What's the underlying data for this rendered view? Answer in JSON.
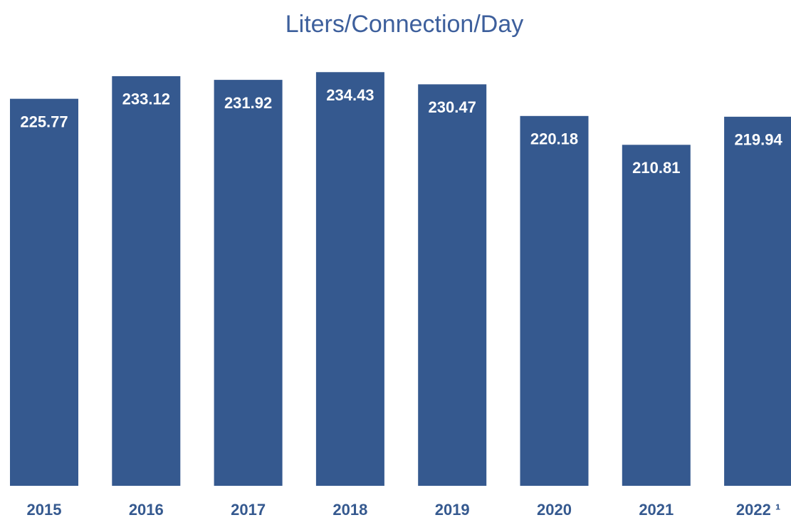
{
  "chart_data": {
    "type": "bar",
    "title": "Liters/Connection/Day",
    "categories": [
      "2015",
      "2016",
      "2017",
      "2018",
      "2019",
      "2020",
      "2021",
      "2022 ¹"
    ],
    "values": [
      225.77,
      233.12,
      231.92,
      234.43,
      230.47,
      220.18,
      210.81,
      219.94
    ],
    "color": "#35598f",
    "ylim": [
      100,
      250
    ]
  }
}
